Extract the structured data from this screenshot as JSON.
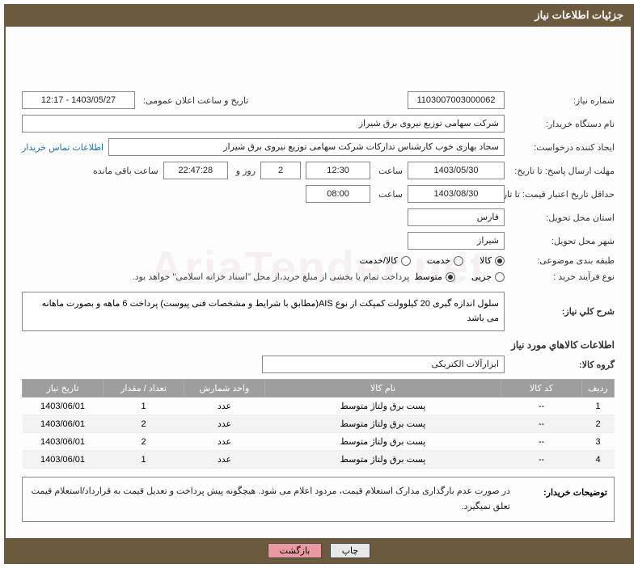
{
  "header": {
    "title": "جزئیات اطلاعات نیاز"
  },
  "fields": {
    "need_no_label": "شماره نیاز:",
    "need_no": "1103007003000062",
    "pub_datetime_label": "تاریخ و ساعت اعلان عمومی:",
    "pub_datetime": "1403/05/27 - 12:17",
    "buyer_label": "نام دستگاه خریدار:",
    "buyer": "شرکت سهامی توزیع نیروی برق شیراز",
    "requester_label": "ایجاد کننده درخواست:",
    "requester": "سجاد بهاری خوب کارشناس تدارکات شرکت سهامی توزیع نیروی برق شیراز",
    "contact_link": "اطلاعات تماس خریدار",
    "deadline_label": "مهلت ارسال پاسخ: تا تاریخ:",
    "deadline_date": "1403/05/30",
    "time_word": "ساعت",
    "deadline_time": "12:30",
    "days_remain": "2",
    "days_word": "روز و",
    "hours_remain": "22:47:28",
    "remain_word": "ساعت باقی مانده",
    "validity_label": "حداقل تاریخ اعتبار قیمت: تا تاریخ:",
    "validity_date": "1403/08/30",
    "validity_time": "08:00",
    "province_label": "استان محل تحویل:",
    "province": "فارس",
    "city_label": "شهر محل تحویل:",
    "city": "شیراز",
    "category_label": "طبقه بندی موضوعی:",
    "process_label": "نوع فرآیند خرید :",
    "process_note": "پرداخت تمام یا بخشی از مبلغ خرید،از محل \"اسناد خزانه اسلامی\" خواهد بود.",
    "desc_label": "شرح کلي نياز:",
    "desc": "سلول اندازه گیری 20 کیلوولت کمپکت از نوع AIS(مطابق با شرایط و مشخصات فنی پیوست) پرداخت 6 ماهه و بصورت ماهانه می باشد",
    "items_title": "اطلاعات کالاهاي مورد نياز",
    "group_label": "گروه کالا:",
    "group": "ابزارآلات الکتریکی",
    "buyer_desc_label": "توضیحات خریدار:",
    "buyer_desc": "در صورت عدم بارگذاری مدارک استعلام قیمت، مردود اعلام می شود. هیچگونه پیش پرداخت و تعدیل قیمت به قرارداد/استعلام قیمت تعلق نمیگیرد."
  },
  "radios": {
    "category": [
      {
        "label": "کالا",
        "checked": true
      },
      {
        "label": "خدمت",
        "checked": false
      },
      {
        "label": "کالا/خدمت",
        "checked": false
      }
    ],
    "process": [
      {
        "label": "جزیی",
        "checked": false
      },
      {
        "label": "متوسط",
        "checked": true
      }
    ]
  },
  "table": {
    "headers": {
      "idx": "ردیف",
      "code": "کد کالا",
      "name": "نام کالا",
      "unit": "واحد شمارش",
      "qty": "تعداد / مقدار",
      "date": "تاریخ نیاز"
    },
    "rows": [
      {
        "idx": "1",
        "code": "--",
        "name": "پست برق ولتاژ متوسط",
        "unit": "عدد",
        "qty": "1",
        "date": "1403/06/01"
      },
      {
        "idx": "2",
        "code": "--",
        "name": "پست برق ولتاژ متوسط",
        "unit": "عدد",
        "qty": "2",
        "date": "1403/06/01"
      },
      {
        "idx": "3",
        "code": "--",
        "name": "پست برق ولتاژ متوسط",
        "unit": "عدد",
        "qty": "2",
        "date": "1403/06/01"
      },
      {
        "idx": "4",
        "code": "--",
        "name": "پست برق ولتاژ متوسط",
        "unit": "عدد",
        "qty": "1",
        "date": "1403/06/01"
      }
    ]
  },
  "buttons": {
    "print": "چاپ",
    "back": "بازگشت"
  },
  "watermark": "AriaTender.net"
}
